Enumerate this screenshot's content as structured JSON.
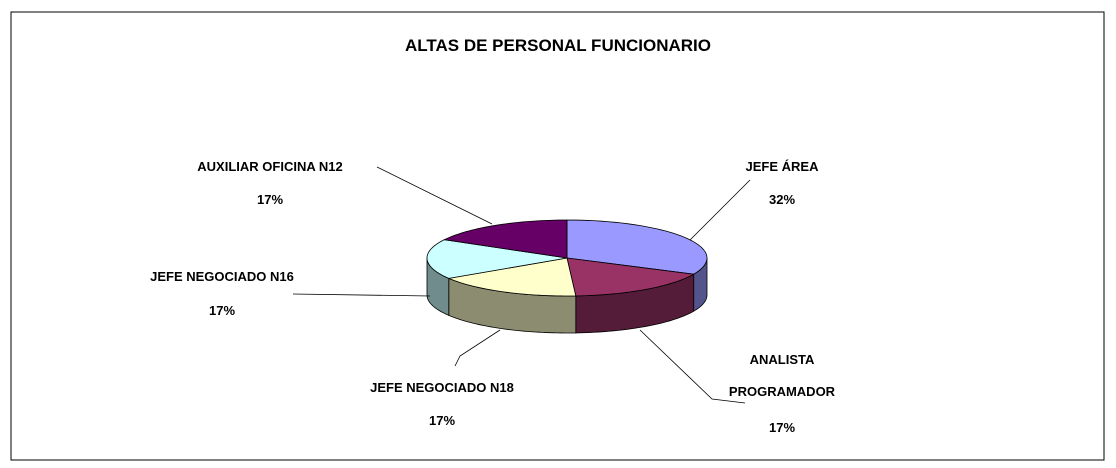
{
  "chart_data": {
    "type": "pie",
    "title": "ALTAS DE PERSONAL FUNCIONARIO",
    "categories": [
      "JEFE ÁREA",
      "ANALISTA PROGRAMADOR",
      "JEFE NEGOCIADO N18",
      "JEFE NEGOCIADO N16",
      "AUXILIAR OFICINA N12"
    ],
    "values": [
      32,
      17,
      17,
      17,
      17
    ],
    "value_labels": [
      "32%",
      "17%",
      "17%",
      "17%",
      "17%"
    ],
    "colors": [
      "#9999ff",
      "#993366",
      "#ffffcc",
      "#ccffff",
      "#660066"
    ]
  }
}
